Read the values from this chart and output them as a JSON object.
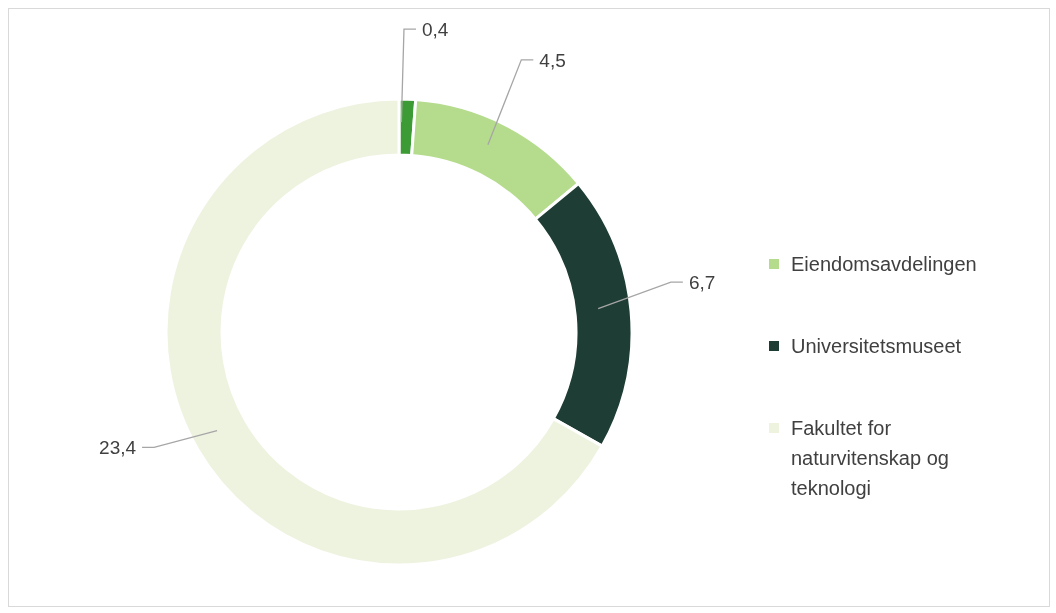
{
  "chart_data": {
    "type": "donut",
    "categories": [
      null,
      "Eiendomsavdelingen",
      "Universitetsmuseet",
      "Fakultet for naturvitenskap og teknologi"
    ],
    "values": [
      0.4,
      4.5,
      6.7,
      23.4
    ],
    "colors": [
      "#3d9b35",
      "#b5dc8d",
      "#1e3d34",
      "#eef3e0"
    ],
    "value_labels": [
      "0,4",
      "4,5",
      "6,7",
      "23,4"
    ],
    "legend": "right"
  }
}
